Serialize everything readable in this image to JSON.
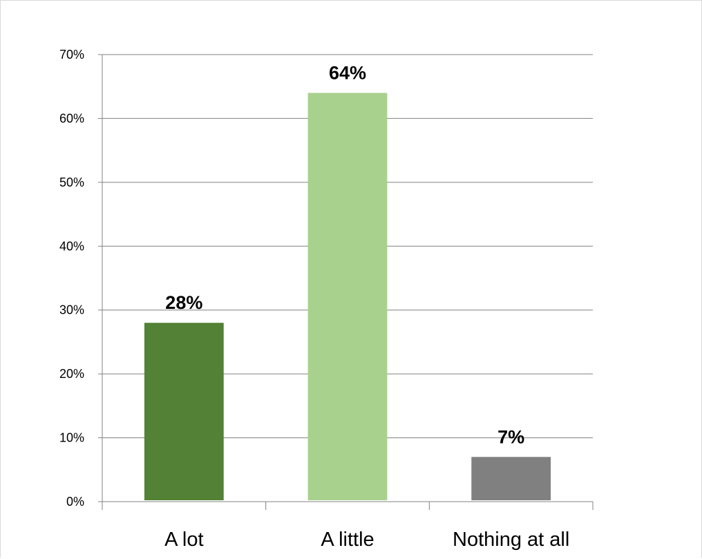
{
  "chart_data": {
    "type": "bar",
    "categories": [
      "A lot",
      "A little",
      "Nothing at all"
    ],
    "values": [
      28,
      64,
      7
    ],
    "data_labels": [
      "28%",
      "64%",
      "7%"
    ],
    "colors": [
      "#538135",
      "#a9d18e",
      "#808080"
    ],
    "ylim": [
      0,
      70
    ],
    "yticks": [
      0,
      10,
      20,
      30,
      40,
      50,
      60,
      70
    ],
    "ytick_labels": [
      "0%",
      "10%",
      "20%",
      "30%",
      "40%",
      "50%",
      "60%",
      "70%"
    ],
    "grid": true,
    "gridline_color": "#808080",
    "legend": "none"
  }
}
